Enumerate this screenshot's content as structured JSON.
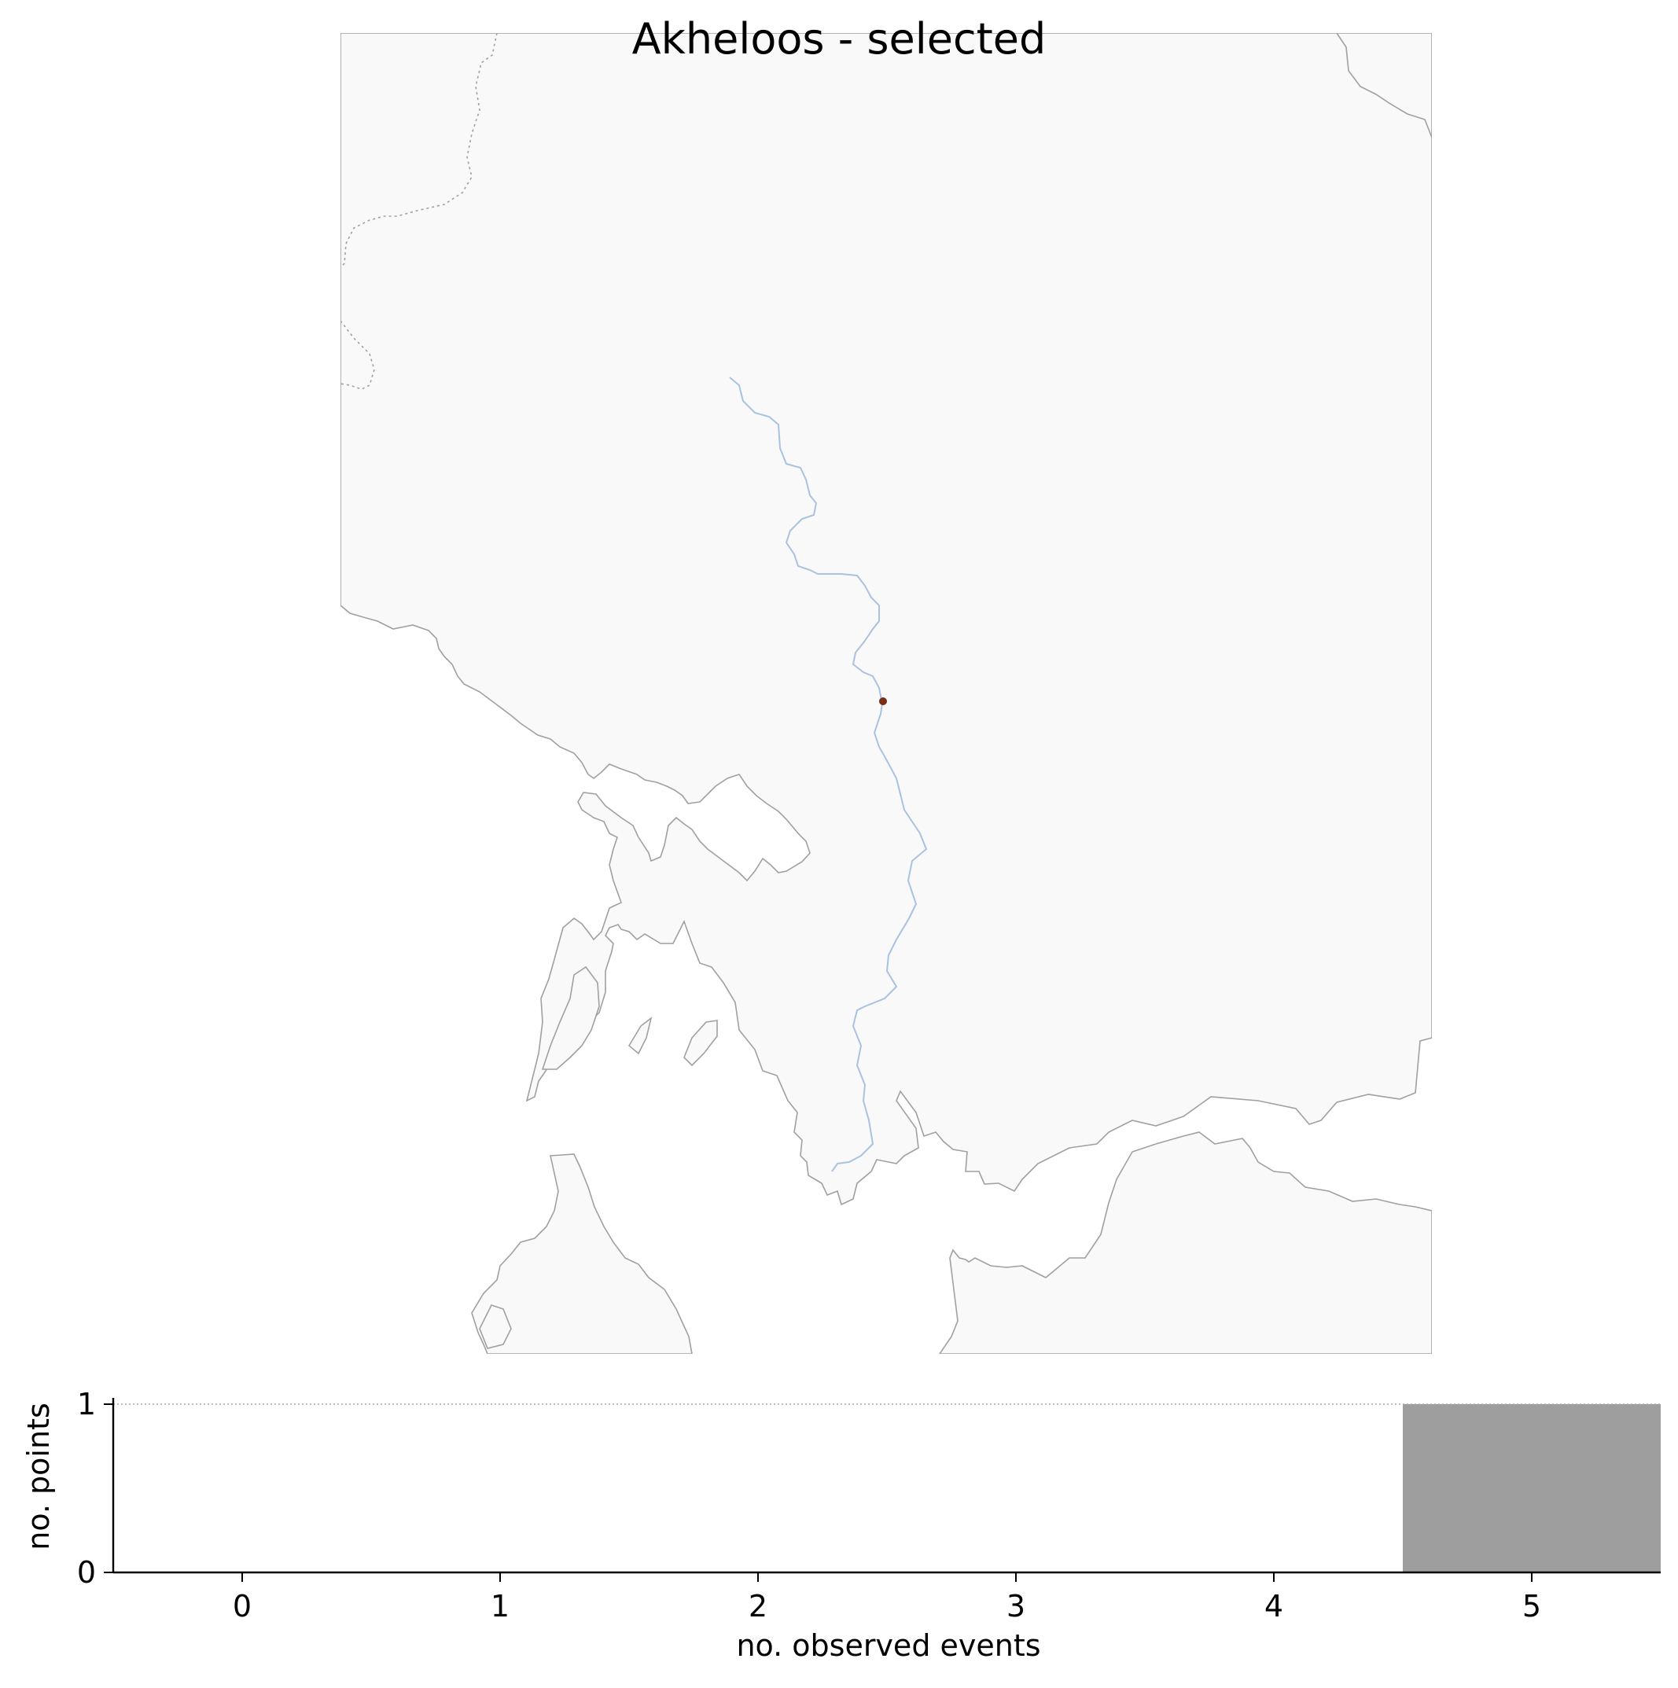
{
  "map": {
    "title": "Akheloos - selected",
    "land_color": "#f9f9f9",
    "coast_color": "#a0a0a0",
    "river_color": "#a9c2e0",
    "point_color": "#7a2e16"
  },
  "chart_data": {
    "type": "bar",
    "categories": [
      0,
      1,
      2,
      3,
      4,
      5
    ],
    "values": [
      0,
      0,
      0,
      0,
      0,
      1
    ],
    "xlabel": "no. observed events",
    "ylabel": "no. points",
    "xlim": [
      -0.5,
      5.5
    ],
    "ylim": [
      0,
      1
    ],
    "yticks": [
      0,
      1
    ],
    "xticks": [
      0,
      1,
      2,
      3,
      4,
      5
    ],
    "bar_color": "#9e9e9e",
    "reference_line": 1,
    "grid": false
  }
}
